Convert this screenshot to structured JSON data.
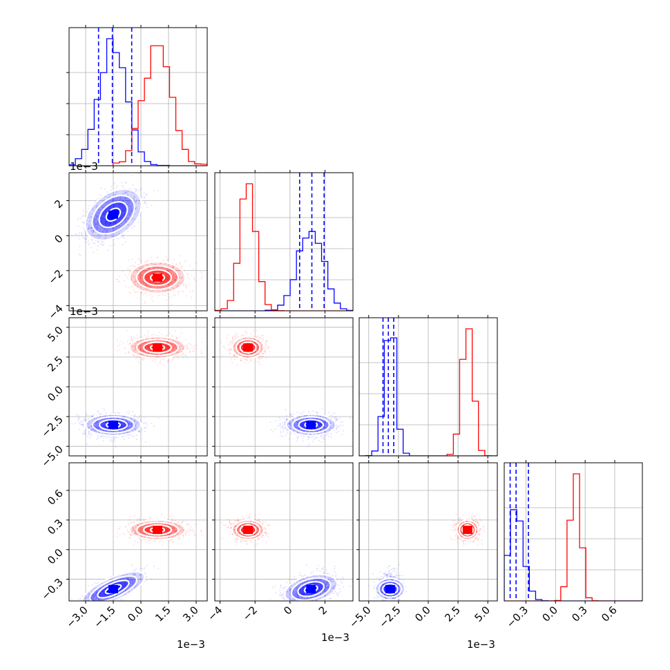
{
  "colors": {
    "series_a": "#0000ff",
    "series_b": "#ff0000",
    "grid": "#b0b0b0",
    "frame": "#000000"
  },
  "texts": {
    "offset_row1": "1e−3",
    "offset_row2": "1e−3",
    "offset_x_col0": "1e−3",
    "offset_x_col1": "1e−3",
    "offset_x_col2": "1e−3"
  },
  "chart_data": {
    "type": "corner",
    "grid": true,
    "parameters": [
      {
        "axis_range": [
          -0.0039,
          0.0036
        ],
        "tick_values": [
          -0.003,
          -0.0015,
          0.0,
          0.0015,
          0.003
        ],
        "tick_labels": [
          "−3.0",
          "−1.5",
          "0.0",
          "1.5",
          "3.0"
        ],
        "offset_text": "1e−3"
      },
      {
        "axis_range": [
          -0.0043,
          0.0036
        ],
        "tick_values": [
          -0.004,
          -0.002,
          0,
          0.002
        ],
        "tick_labels": [
          "−4",
          "−2",
          "0",
          "2"
        ],
        "offset_text": "1e−3"
      },
      {
        "axis_range": [
          -0.0058,
          0.0058
        ],
        "tick_values": [
          -0.005,
          -0.0025,
          0.0,
          0.0025,
          0.005
        ],
        "tick_labels": [
          "−5.0",
          "−2.5",
          "0.0",
          "2.5",
          "5.0"
        ],
        "offset_text": "1e−3"
      },
      {
        "axis_range": [
          -0.52,
          0.88
        ],
        "tick_values": [
          -0.3,
          0.0,
          0.3,
          0.6
        ],
        "tick_labels": [
          "−0.3",
          "0.0",
          "0.3",
          "0.6"
        ],
        "offset_text": ""
      }
    ],
    "series": [
      {
        "color": "#0000ff",
        "mean": [
          -0.0015,
          0.0012,
          -0.0032,
          -0.4
        ],
        "sd": [
          0.00075,
          0.0007,
          0.00045,
          0.075
        ],
        "corr": [
          [
            1,
            0.5,
            0,
            0.75
          ],
          [
            0.5,
            1,
            0,
            0.3
          ],
          [
            0,
            0,
            1,
            0
          ],
          [
            0.75,
            0.3,
            0,
            1
          ]
        ],
        "quantiles": [
          [
            -0.0023,
            -0.00155,
            -0.0005
          ],
          [
            0.00055,
            0.00125,
            0.00195
          ],
          [
            -0.0038,
            -0.00335,
            -0.0029
          ],
          [
            -0.46,
            -0.4,
            -0.275
          ]
        ]
      },
      {
        "color": "#ff0000",
        "mean": [
          0.0009,
          -0.0024,
          0.0033,
          0.2
        ],
        "sd": [
          0.00075,
          0.00045,
          0.00045,
          0.05
        ],
        "corr": [
          [
            1,
            0,
            0,
            0
          ],
          [
            0,
            1,
            0,
            0
          ],
          [
            0,
            0,
            1,
            0
          ],
          [
            0,
            0,
            0,
            1
          ]
        ],
        "quantiles": []
      }
    ],
    "contour_levels_sigma": [
      0.5,
      1.0,
      1.5,
      2.0
    ]
  }
}
